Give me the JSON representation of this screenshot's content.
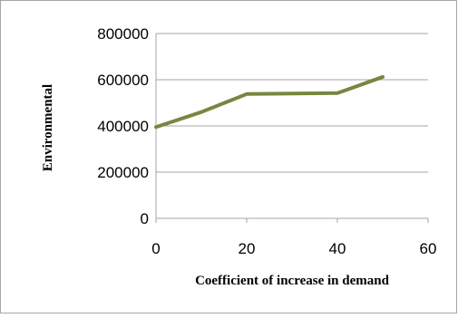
{
  "chart_data": {
    "type": "line",
    "title": "",
    "xlabel": "Coefficient of increase in demand",
    "ylabel": "Environmental",
    "x": [
      0,
      10,
      20,
      30,
      40,
      50
    ],
    "series": [
      {
        "values": [
          395000,
          460000,
          538000,
          540000,
          542000,
          612000
        ]
      }
    ],
    "xlim": [
      0,
      60
    ],
    "ylim": [
      0,
      800000
    ],
    "xticks": [
      "0",
      "20",
      "40",
      "60"
    ],
    "yticks": [
      "0",
      "200000",
      "400000",
      "600000",
      "800000"
    ],
    "grid": true,
    "legend": "none",
    "colors": {
      "line": "#76873F",
      "grid": "#A6A6A6",
      "border": "#A6A6A6"
    }
  }
}
